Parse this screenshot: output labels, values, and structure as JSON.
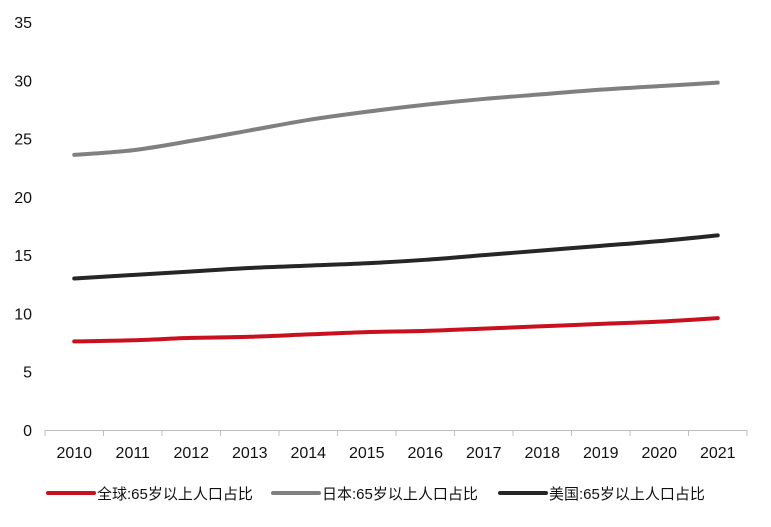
{
  "chart_data": {
    "type": "line",
    "title": "",
    "xlabel": "",
    "ylabel": "",
    "categories": [
      "2010",
      "2011",
      "2012",
      "2013",
      "2014",
      "2015",
      "2016",
      "2017",
      "2018",
      "2019",
      "2020",
      "2021"
    ],
    "ylim": [
      0,
      35
    ],
    "yticks": [
      "0",
      "5",
      "10",
      "15",
      "20",
      "25",
      "30",
      "35"
    ],
    "grid": false,
    "legend_position": "bottom",
    "series": [
      {
        "name": "全球:65岁以上人口占比",
        "color": "#c8101e",
        "values": [
          7.6,
          7.7,
          7.9,
          8.0,
          8.2,
          8.4,
          8.5,
          8.7,
          8.9,
          9.1,
          9.3,
          9.6
        ]
      },
      {
        "name": "日本:65岁以上人口占比",
        "color": "#808080",
        "values": [
          23.6,
          24.0,
          24.8,
          25.7,
          26.6,
          27.3,
          27.9,
          28.4,
          28.8,
          29.2,
          29.5,
          29.8
        ]
      },
      {
        "name": "美国:65岁以上人口占比",
        "color": "#262626",
        "values": [
          13.0,
          13.3,
          13.6,
          13.9,
          14.1,
          14.3,
          14.6,
          15.0,
          15.4,
          15.8,
          16.2,
          16.7
        ]
      }
    ]
  }
}
